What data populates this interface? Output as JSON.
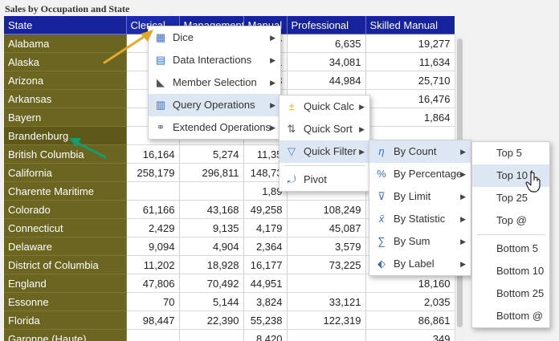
{
  "report": {
    "title": "Sales by Occupation and State"
  },
  "grid": {
    "columns": [
      "State",
      "Clerical",
      "Management",
      "Manual",
      "Professional",
      "Skilled Manual"
    ],
    "rows": [
      {
        "state": "Alabama",
        "values": [
          "",
          "",
          "67",
          "6,635",
          "19,277"
        ]
      },
      {
        "state": "Alaska",
        "values": [
          "",
          "",
          "01",
          "34,081",
          "11,634"
        ]
      },
      {
        "state": "Arizona",
        "values": [
          "",
          "",
          "93",
          "44,984",
          "25,710"
        ]
      },
      {
        "state": "Arkansas",
        "values": [
          "",
          "",
          "",
          "",
          "16,476"
        ]
      },
      {
        "state": "Bayern",
        "values": [
          "",
          "",
          "",
          "",
          "1,864"
        ]
      },
      {
        "state": "Brandenburg",
        "values": [
          "",
          "",
          "",
          "",
          ""
        ]
      },
      {
        "state": "British Columbia",
        "values": [
          "16,164",
          "5,274",
          "11,35",
          "",
          ""
        ]
      },
      {
        "state": "California",
        "values": [
          "258,179",
          "296,811",
          "148,73",
          "",
          ""
        ]
      },
      {
        "state": "Charente Maritime",
        "values": [
          "",
          "",
          "1,89",
          "",
          ""
        ]
      },
      {
        "state": "Colorado",
        "values": [
          "61,166",
          "43,168",
          "49,258",
          "108,249",
          ""
        ]
      },
      {
        "state": "Connecticut",
        "values": [
          "2,429",
          "9,135",
          "4,179",
          "45,087",
          ""
        ]
      },
      {
        "state": "Delaware",
        "values": [
          "9,094",
          "4,904",
          "2,364",
          "3,579",
          ""
        ]
      },
      {
        "state": "District of Columbia",
        "values": [
          "11,202",
          "18,928",
          "16,177",
          "73,225",
          ""
        ]
      },
      {
        "state": "England",
        "values": [
          "47,806",
          "70,492",
          "44,951",
          "",
          "18,160"
        ]
      },
      {
        "state": "Essonne",
        "values": [
          "70",
          "5,144",
          "3,824",
          "33,121",
          "2,035"
        ]
      },
      {
        "state": "Florida",
        "values": [
          "98,447",
          "22,390",
          "55,238",
          "122,319",
          "86,861"
        ]
      },
      {
        "state": "Garonne (Haute)",
        "values": [
          "",
          "",
          "8,420",
          "",
          "349"
        ]
      }
    ]
  },
  "menus": {
    "main": [
      {
        "label": "Dice",
        "icon": "dice-icon"
      },
      {
        "label": "Data Interactions",
        "icon": "data-interactions-icon"
      },
      {
        "label": "Member Selection",
        "icon": "member-selection-icon"
      },
      {
        "label": "Query Operations",
        "icon": "query-operations-icon"
      },
      {
        "label": "Extended Operations",
        "icon": "extended-operations-icon"
      }
    ],
    "query": [
      {
        "label": "Quick Calc"
      },
      {
        "label": "Quick Sort"
      },
      {
        "label": "Quick Filter"
      },
      {
        "label": "Pivot"
      }
    ],
    "filter": [
      {
        "label": "By Count"
      },
      {
        "label": "By Percentage"
      },
      {
        "label": "By Limit"
      },
      {
        "label": "By Statistic"
      },
      {
        "label": "By Sum"
      },
      {
        "label": "By Label"
      }
    ],
    "count": [
      {
        "label": "Top 5"
      },
      {
        "label": "Top 10"
      },
      {
        "label": "Top 25"
      },
      {
        "label": "Top @"
      },
      {
        "label": "Bottom 5"
      },
      {
        "label": "Bottom 10"
      },
      {
        "label": "Bottom 25"
      },
      {
        "label": "Bottom @"
      }
    ]
  },
  "colors": {
    "header_bg": "#17239a",
    "state_bg": "#6b6521",
    "menu_highlight": "#dde6f3",
    "arrow_yellow": "#e0a82e",
    "arrow_green": "#1a9a6a"
  }
}
